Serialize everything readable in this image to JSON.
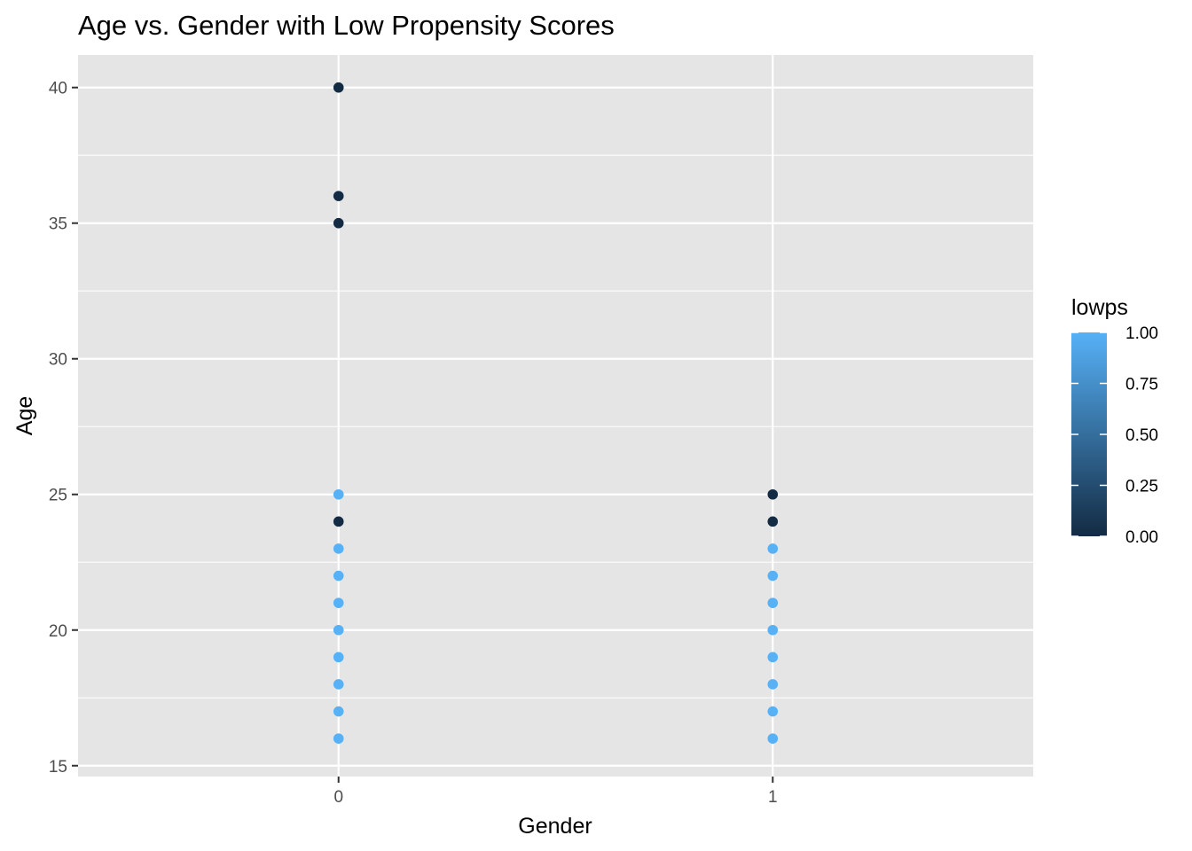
{
  "chart_data": {
    "type": "scatter",
    "title": "Age vs. Gender with Low Propensity Scores",
    "xlabel": "Gender",
    "ylabel": "Age",
    "x_categories": [
      "0",
      "1"
    ],
    "xlim": [
      -0.6,
      1.6
    ],
    "ylim": [
      14.6,
      41.2
    ],
    "y_ticks": [
      15,
      20,
      25,
      30,
      35,
      40
    ],
    "y_minor_ticks": [
      17.5,
      22.5,
      27.5,
      32.5,
      37.5
    ],
    "grid": true,
    "legend": {
      "title": "lowps",
      "position": "right",
      "type": "colorbar",
      "range": [
        0,
        1
      ],
      "ticks": [
        "0.00",
        "0.25",
        "0.50",
        "0.75",
        "1.00"
      ],
      "color_low": "#132B43",
      "color_high": "#56B1F7"
    },
    "points": [
      {
        "x": 0,
        "y": 40,
        "lowps": 0
      },
      {
        "x": 0,
        "y": 36,
        "lowps": 0
      },
      {
        "x": 0,
        "y": 35,
        "lowps": 0
      },
      {
        "x": 0,
        "y": 25,
        "lowps": 1
      },
      {
        "x": 0,
        "y": 24,
        "lowps": 0
      },
      {
        "x": 0,
        "y": 23,
        "lowps": 1
      },
      {
        "x": 0,
        "y": 22,
        "lowps": 1
      },
      {
        "x": 0,
        "y": 21,
        "lowps": 1
      },
      {
        "x": 0,
        "y": 20,
        "lowps": 1
      },
      {
        "x": 0,
        "y": 19,
        "lowps": 1
      },
      {
        "x": 0,
        "y": 18,
        "lowps": 1
      },
      {
        "x": 0,
        "y": 17,
        "lowps": 1
      },
      {
        "x": 0,
        "y": 16,
        "lowps": 1
      },
      {
        "x": 1,
        "y": 25,
        "lowps": 0
      },
      {
        "x": 1,
        "y": 24,
        "lowps": 0
      },
      {
        "x": 1,
        "y": 23,
        "lowps": 1
      },
      {
        "x": 1,
        "y": 22,
        "lowps": 1
      },
      {
        "x": 1,
        "y": 21,
        "lowps": 1
      },
      {
        "x": 1,
        "y": 20,
        "lowps": 1
      },
      {
        "x": 1,
        "y": 19,
        "lowps": 1
      },
      {
        "x": 1,
        "y": 18,
        "lowps": 1
      },
      {
        "x": 1,
        "y": 17,
        "lowps": 1
      },
      {
        "x": 1,
        "y": 16,
        "lowps": 1
      }
    ],
    "colors": {
      "panel_background": "#E5E5E5",
      "grid": "#FFFFFF",
      "tick_text": "#4D4D4D"
    }
  }
}
